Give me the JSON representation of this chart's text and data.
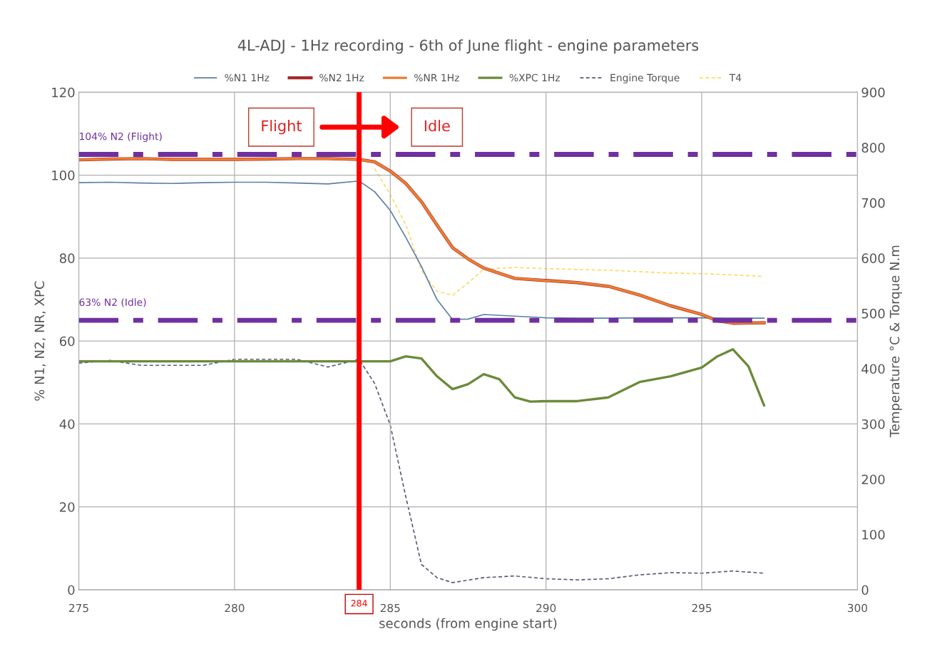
{
  "chart_data": {
    "type": "line",
    "title": "4L-ADJ - 1Hz recording - 6th of June flight - engine parameters",
    "xlabel": "seconds (from engine start)",
    "ylabel": "% N1, N2, NR, XPC",
    "y2label": "Temperature °C & Torque N.m",
    "xlim": [
      275,
      300
    ],
    "xticks": [
      275,
      280,
      285,
      290,
      295,
      300
    ],
    "ylim": [
      0,
      120
    ],
    "yticks": [
      0,
      20,
      40,
      60,
      80,
      100,
      120
    ],
    "y2lim": [
      0,
      900
    ],
    "y2ticks": [
      0,
      100,
      200,
      300,
      400,
      500,
      600,
      700,
      800,
      900
    ],
    "grid": true,
    "legend": "top",
    "marker": "none",
    "series": [
      {
        "name": "%N1 1Hz",
        "color": "#5b7fa6",
        "line_style": "solid",
        "x": [
          275,
          276,
          277,
          278,
          279,
          280,
          281,
          282,
          283,
          284,
          284.5,
          285,
          285.5,
          286,
          286.5,
          287,
          287.5,
          288,
          289,
          290,
          291,
          292,
          293,
          294,
          295,
          296,
          297
        ],
        "values": [
          98.2,
          98.3,
          98.1,
          98.0,
          98.2,
          98.3,
          98.3,
          98.1,
          97.9,
          98.6,
          96,
          91.5,
          85,
          78,
          70,
          65.2,
          65.3,
          66.4,
          66,
          65.6,
          65.5,
          65.5,
          65.6,
          65.6,
          65.6,
          65.5,
          65.5
        ]
      },
      {
        "name": "%N2 1Hz",
        "color": "#a52a2a",
        "line_style": "solid",
        "x": [
          275,
          276,
          277,
          278,
          279,
          280,
          281,
          282,
          283,
          284,
          284.5,
          285,
          285.5,
          286,
          286.5,
          287,
          287.5,
          288,
          289,
          290,
          291,
          292,
          293,
          294,
          295,
          295.5,
          296,
          297
        ],
        "values": [
          103.7,
          103.9,
          104.0,
          103.8,
          103.8,
          103.8,
          103.9,
          104.0,
          104.0,
          103.8,
          103.2,
          101,
          98,
          93.6,
          88,
          82.5,
          79.8,
          77.6,
          75.1,
          74.6,
          74.1,
          73.2,
          71.1,
          68.5,
          66.4,
          64.9,
          64.3,
          64.4
        ]
      },
      {
        "name": "%NR 1Hz",
        "color": "#ed7d31",
        "line_style": "solid",
        "x": [
          275,
          276,
          277,
          278,
          279,
          280,
          281,
          282,
          283,
          284,
          284.5,
          285,
          285.5,
          286,
          286.5,
          287,
          287.5,
          288,
          289,
          290,
          291,
          292,
          293,
          294,
          295,
          295.5,
          296,
          297
        ],
        "values": [
          103.7,
          103.9,
          104.0,
          103.8,
          103.8,
          103.8,
          103.9,
          104.0,
          104.0,
          103.8,
          103.2,
          101,
          98,
          93.6,
          88,
          82.5,
          79.8,
          77.6,
          75.1,
          74.6,
          74.1,
          73.2,
          71.1,
          68.5,
          66.4,
          64.9,
          64.3,
          64.4
        ]
      },
      {
        "name": "%XPC 1Hz",
        "color": "#6b8a3a",
        "line_style": "solid",
        "x": [
          275,
          276,
          277,
          278,
          279,
          280,
          281,
          282,
          283,
          284,
          285,
          285.5,
          286,
          286.5,
          287,
          287.5,
          288,
          288.5,
          289,
          289.5,
          290,
          291,
          292,
          293,
          294,
          295,
          295.5,
          296,
          296.5,
          297
        ],
        "values": [
          55.1,
          55.1,
          55.1,
          55.1,
          55.1,
          55.1,
          55.1,
          55.1,
          55.1,
          55.1,
          55.1,
          56.3,
          55.8,
          51.5,
          48.4,
          49.6,
          52,
          50.8,
          46.4,
          45.4,
          45.5,
          45.5,
          46.4,
          50.1,
          51.5,
          53.6,
          56.3,
          58,
          53.9,
          44.5
        ]
      },
      {
        "name": "Engine Torque",
        "color": "#5a5a7a",
        "line_style": "dashed",
        "axis": "y2",
        "x": [
          275,
          276,
          277,
          278,
          279,
          280,
          281,
          282,
          283,
          284,
          284.5,
          285,
          285.5,
          286,
          286.5,
          287,
          288,
          289,
          290,
          291,
          292,
          293,
          294,
          295,
          296,
          297
        ],
        "values": [
          410,
          415,
          406,
          406,
          406,
          417,
          417,
          417,
          403,
          417,
          373,
          298,
          168,
          46,
          22,
          13,
          22,
          25,
          20,
          18,
          20,
          27,
          31,
          30,
          34,
          30
        ]
      },
      {
        "name": "T4",
        "color": "#ffd966",
        "line_style": "dashed",
        "axis": "y2",
        "x": [
          284.5,
          285,
          285.5,
          286,
          286.5,
          287,
          287.5,
          288,
          289,
          290,
          292,
          294,
          295,
          297
        ],
        "values": [
          762,
          715,
          660,
          578,
          540,
          533,
          555,
          580,
          583,
          581,
          578,
          573,
          572,
          567
        ]
      }
    ],
    "ref_lines": [
      {
        "axis": "y",
        "value": 105,
        "label": "104% N2 (Flight)",
        "color": "#7030a0",
        "line_style": "dashdot"
      },
      {
        "axis": "y",
        "value": 65,
        "label": "63% N2 (Idle)",
        "color": "#7030a0",
        "line_style": "dashdot"
      },
      {
        "axis": "x",
        "value": 284,
        "label": "284",
        "color": "#ff0000",
        "line_style": "solid"
      }
    ],
    "annotations": [
      "Flight",
      "Idle"
    ]
  }
}
